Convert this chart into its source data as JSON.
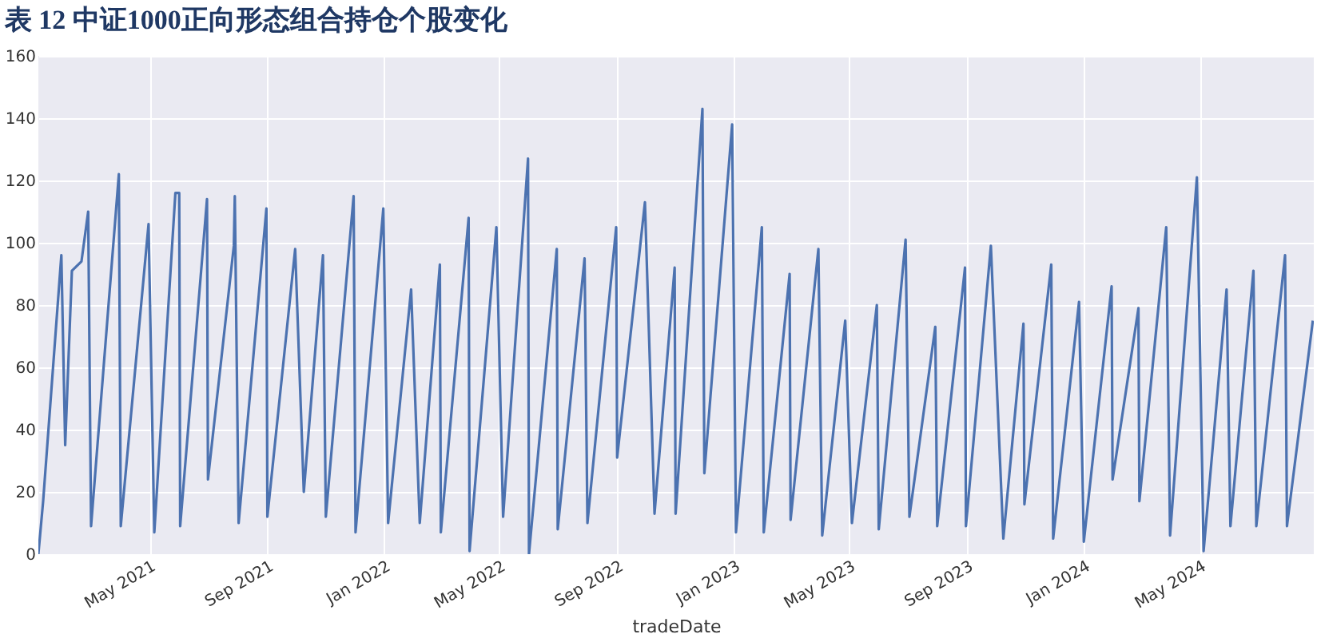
{
  "chart_data": {
    "type": "line",
    "title": "表 12 中证1000正向形态组合持仓个股变化",
    "xlabel": "tradeDate",
    "x": [
      "2021-01-05",
      "2021-01-10",
      "2021-01-29",
      "2021-02-02",
      "2021-02-09",
      "2021-02-19",
      "2021-02-26",
      "2021-03-01",
      "2021-03-30",
      "2021-04-01",
      "2021-04-30",
      "2021-05-06",
      "2021-05-28",
      "2021-06-01",
      "2021-06-02",
      "2021-06-30",
      "2021-07-01",
      "2021-07-28",
      "2021-07-29",
      "2021-08-02",
      "2021-08-31",
      "2021-09-01",
      "2021-09-30",
      "2021-10-09",
      "2021-10-29",
      "2021-11-01",
      "2021-11-30",
      "2021-12-02",
      "2021-12-31",
      "2022-01-05",
      "2022-01-29",
      "2022-02-07",
      "2022-02-28",
      "2022-03-01",
      "2022-03-30",
      "2022-03-31",
      "2022-04-28",
      "2022-05-05",
      "2022-05-31",
      "2022-06-01",
      "2022-06-30",
      "2022-07-01",
      "2022-07-29",
      "2022-08-01",
      "2022-08-31",
      "2022-09-01",
      "2022-09-30",
      "2022-10-10",
      "2022-10-31",
      "2022-11-01",
      "2022-11-29",
      "2022-12-01",
      "2022-12-30",
      "2023-01-03",
      "2023-01-30",
      "2023-02-01",
      "2023-02-28",
      "2023-03-01",
      "2023-03-30",
      "2023-04-03",
      "2023-04-27",
      "2023-05-04",
      "2023-05-30",
      "2023-06-01",
      "2023-06-29",
      "2023-07-03",
      "2023-07-30",
      "2023-08-01",
      "2023-08-30",
      "2023-08-31",
      "2023-09-26",
      "2023-10-09",
      "2023-10-30",
      "2023-10-31",
      "2023-11-28",
      "2023-11-30",
      "2023-12-27",
      "2024-01-01",
      "2024-01-30",
      "2024-01-31",
      "2024-02-02",
      "2024-02-27",
      "2024-02-28",
      "2024-03-27",
      "2024-03-31",
      "2024-04-28",
      "2024-05-05",
      "2024-05-29",
      "2024-06-02",
      "2024-06-26",
      "2024-06-29",
      "2024-07-29",
      "2024-07-31",
      "2024-08-27"
    ],
    "series": [
      {
        "color": "#4c72b0",
        "values": [
          0,
          17,
          96,
          35,
          91,
          94,
          110,
          9,
          122,
          9,
          106,
          7,
          116,
          116,
          9,
          114,
          24,
          99,
          115,
          10,
          111,
          12,
          98,
          20,
          96,
          12,
          115,
          7,
          111,
          10,
          85,
          10,
          93,
          7,
          108,
          1,
          105,
          12,
          127,
          0,
          98,
          8,
          95,
          10,
          105,
          31,
          113,
          13,
          92,
          13,
          143,
          26,
          138,
          7,
          105,
          7,
          90,
          11,
          98,
          6,
          75,
          10,
          80,
          8,
          101,
          12,
          73,
          9,
          92,
          9,
          99,
          5,
          74,
          16,
          93,
          5,
          81,
          4,
          86,
          24,
          28,
          79,
          17,
          105,
          6,
          121,
          1,
          85,
          9,
          91,
          9,
          96,
          9,
          75
        ]
      }
    ],
    "xlim": [
      "2021-01-05",
      "2024-08-28"
    ],
    "xticks": [
      {
        "value": "2021-05-01",
        "label": "May 2021"
      },
      {
        "value": "2021-09-01",
        "label": "Sep 2021"
      },
      {
        "value": "2022-01-01",
        "label": "Jan 2022"
      },
      {
        "value": "2022-05-01",
        "label": "May 2022"
      },
      {
        "value": "2022-09-01",
        "label": "Sep 2022"
      },
      {
        "value": "2023-01-01",
        "label": "Jan 2023"
      },
      {
        "value": "2023-05-01",
        "label": "May 2023"
      },
      {
        "value": "2023-09-01",
        "label": "Sep 2023"
      },
      {
        "value": "2024-01-01",
        "label": "Jan 2024"
      },
      {
        "value": "2024-05-01",
        "label": "May 2024"
      }
    ],
    "ylim": [
      0,
      160
    ],
    "yticks": [
      0,
      20,
      40,
      60,
      80,
      100,
      120,
      140,
      160
    ],
    "grid": true,
    "marker": "none",
    "line_style": "solid"
  }
}
